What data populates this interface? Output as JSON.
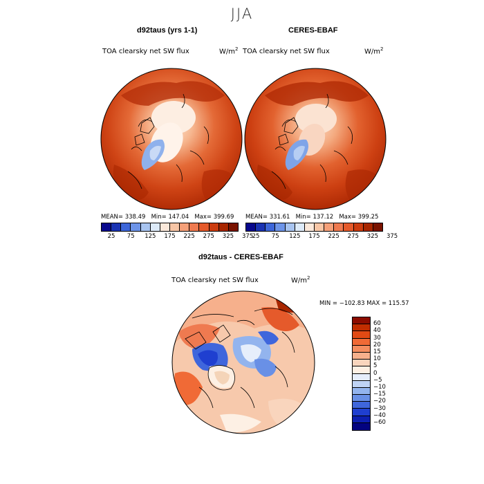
{
  "main_title": "JJA",
  "panels": [
    {
      "title": "d92taus (yrs 1-1)",
      "variable": "TOA clearsky net SW flux",
      "units_base": "W/m",
      "units_exp": "2",
      "mean": "MEAN= 338.49",
      "min": "Min= 147.04",
      "max": "Max= 399.69"
    },
    {
      "title": "CERES-EBAF",
      "variable": "TOA clearsky net SW flux",
      "units_base": "W/m",
      "units_exp": "2",
      "mean": "MEAN= 331.61",
      "min": "Min= 137.12",
      "max": "Max= 399.25"
    }
  ],
  "diff_panel": {
    "title": "d92taus - CERES-EBAF",
    "variable": "TOA clearsky net SW flux",
    "units_base": "W/m",
    "units_exp": "2",
    "minmax": "MIN = −102.83  MAX = 115.57"
  },
  "abs_colorbar": {
    "colors": [
      "#08088c",
      "#1a33b3",
      "#3d66d9",
      "#6d94e8",
      "#a8c4f0",
      "#ddeaf8",
      "#fbe8da",
      "#f8c6a6",
      "#f5a079",
      "#ef7a50",
      "#e55a2b",
      "#cc3c0f",
      "#a82600",
      "#7a1300"
    ],
    "ticks": [
      "25",
      "75",
      "125",
      "175",
      "225",
      "275",
      "325",
      "375"
    ]
  },
  "diff_colorbar": {
    "colors": [
      "#8c0c00",
      "#c12d00",
      "#e24a14",
      "#f06a36",
      "#f48d5f",
      "#f6b08c",
      "#f9d5bd",
      "#fdf0e4",
      "#e6eefb",
      "#bfd3f5",
      "#93b4ee",
      "#6990e6",
      "#3f66dc",
      "#1f3fd0",
      "#0d1fb0",
      "#030380"
    ],
    "ticks": [
      "60",
      "40",
      "30",
      "20",
      "15",
      "10",
      "5",
      "0",
      "−5",
      "−10",
      "−15",
      "−20",
      "−30",
      "−40",
      "−60"
    ]
  }
}
